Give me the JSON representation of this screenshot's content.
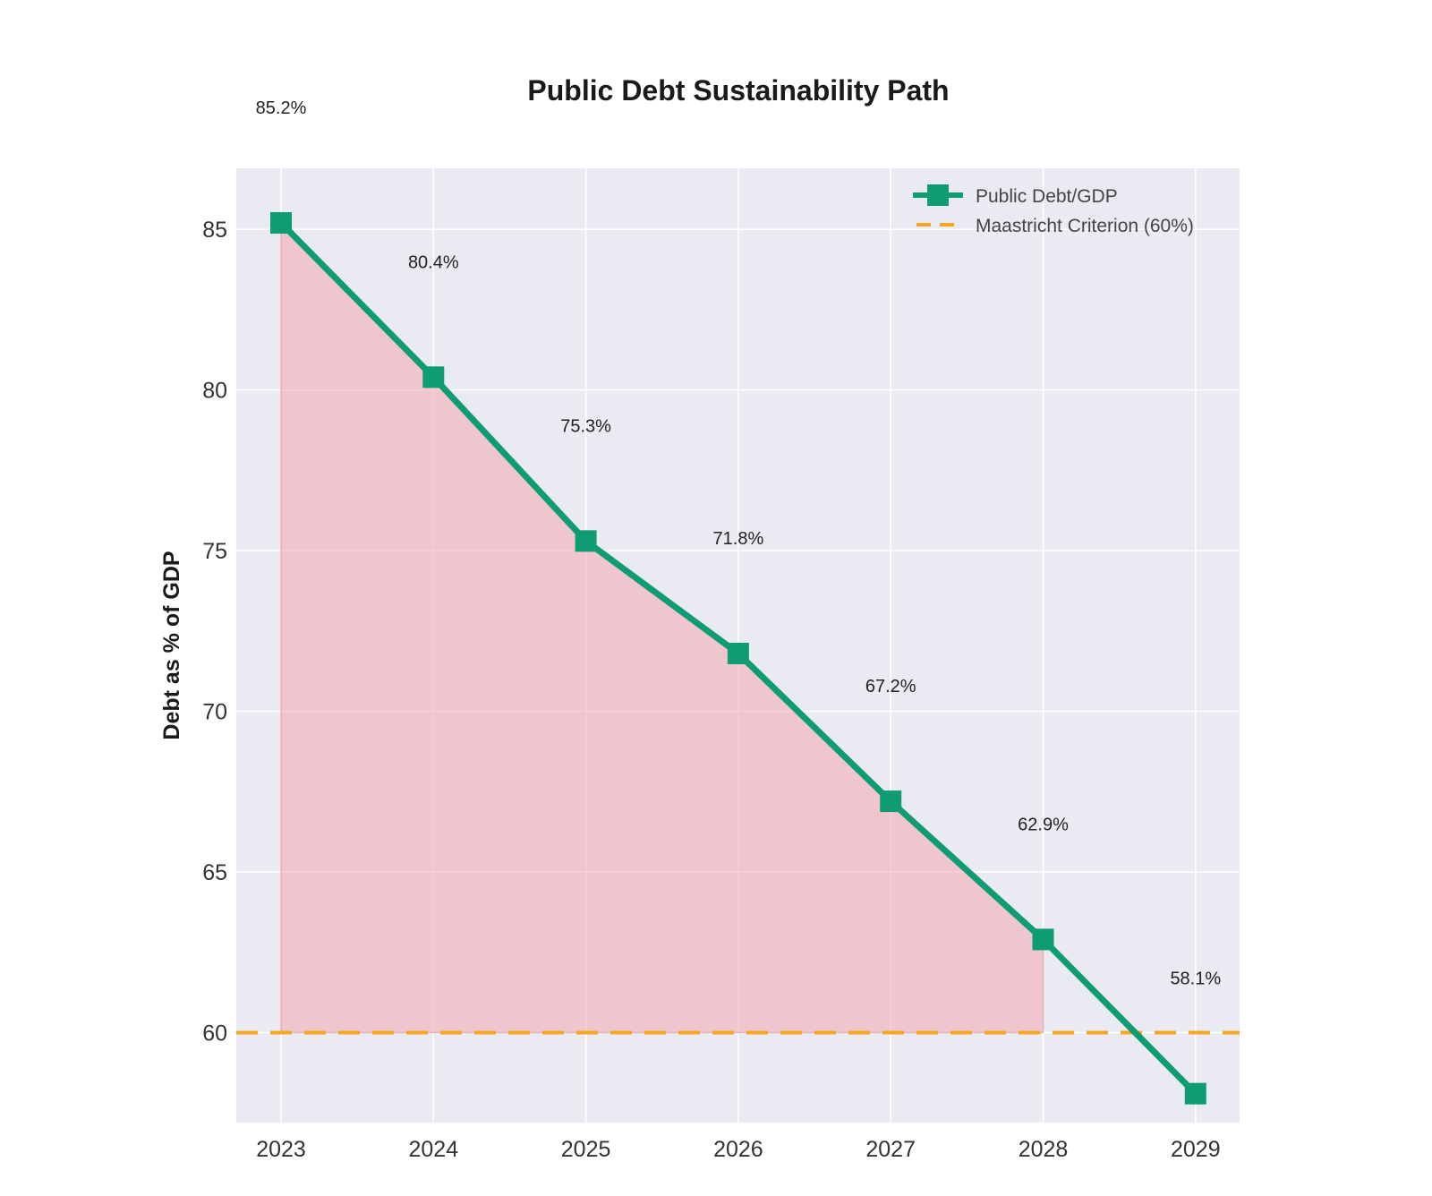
{
  "chart_data": {
    "type": "line",
    "title": "Public Debt Sustainability Path",
    "xlabel": "",
    "ylabel": "Debt as % of GDP",
    "categories": [
      "2023",
      "2024",
      "2025",
      "2026",
      "2027",
      "2028",
      "2029"
    ],
    "series": [
      {
        "name": "Public Debt/GDP",
        "values": [
          85.2,
          80.4,
          75.3,
          71.8,
          67.2,
          62.9,
          58.1
        ],
        "color": "#109c72",
        "marker": "square"
      }
    ],
    "data_labels": [
      "85.2%",
      "80.4%",
      "75.3%",
      "71.8%",
      "67.2%",
      "62.9%",
      "58.1%"
    ],
    "reference_line": {
      "name": "Maastricht Criterion (60%)",
      "value": 60,
      "color": "#f5a623",
      "style": "dashed"
    },
    "shaded_area": {
      "description": "excess above threshold",
      "color": "#f2a8b0",
      "between": "series and reference_line",
      "from_category": "2023",
      "to_category": "2028"
    },
    "yticks": [
      60,
      65,
      70,
      75,
      80,
      85
    ],
    "ylim": [
      57.2,
      86.9
    ],
    "grid": true,
    "legend_position": "top-right",
    "background_color": "#eaeaf2"
  }
}
